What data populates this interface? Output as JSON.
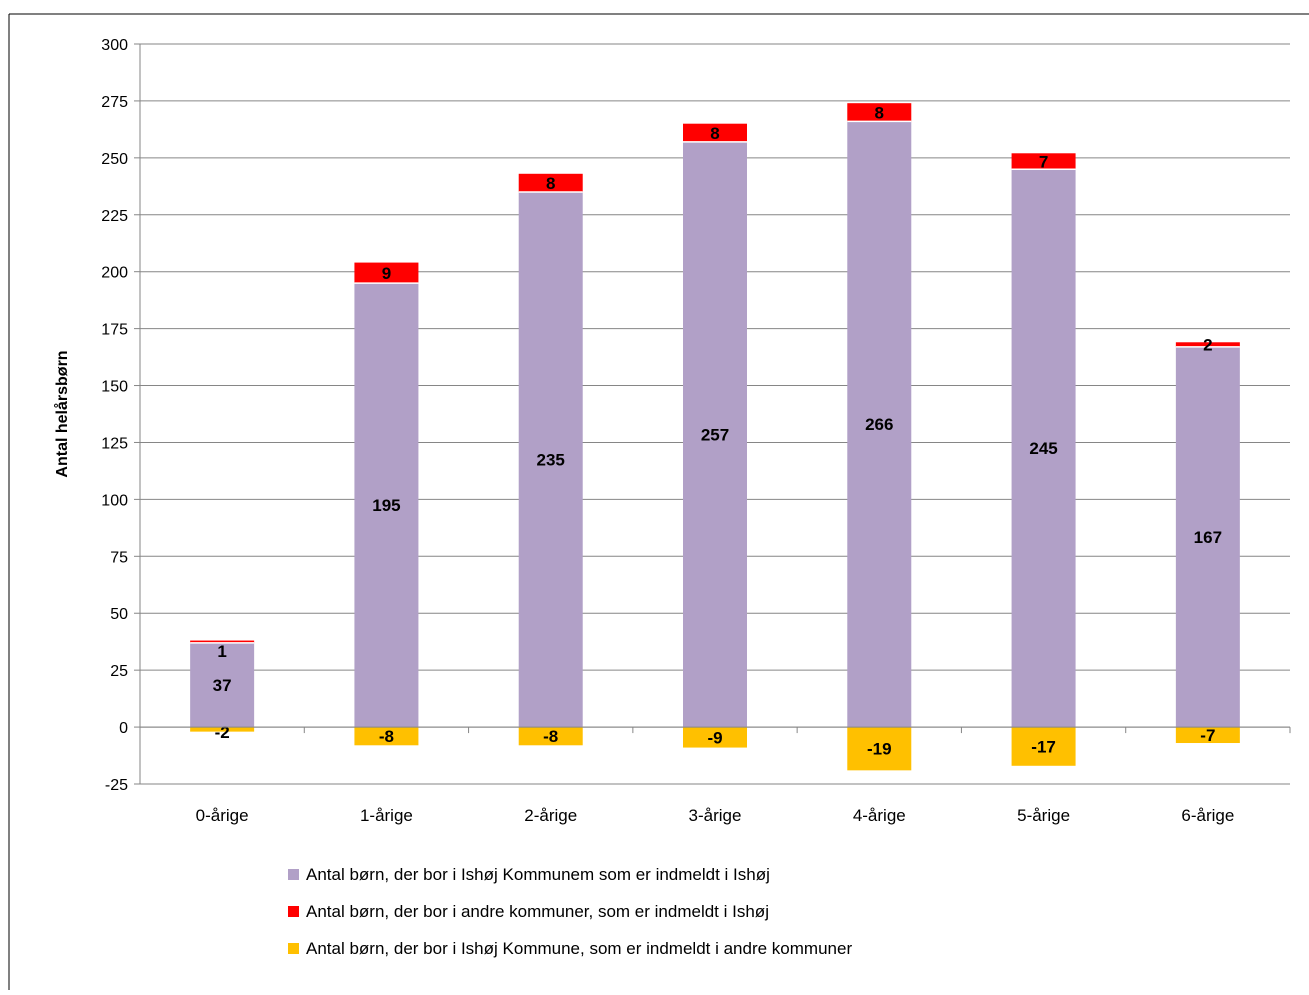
{
  "chart_data": {
    "type": "bar",
    "stacked": true,
    "title": "",
    "ylabel": "Antal helårsbørn",
    "xlabel": "",
    "ylim": [
      -25,
      300
    ],
    "yticks": [
      -25,
      0,
      25,
      50,
      75,
      100,
      125,
      150,
      175,
      200,
      225,
      250,
      275,
      300
    ],
    "grid": true,
    "legend_position": "bottom",
    "categories": [
      "0-årige",
      "1-årige",
      "2-årige",
      "3-årige",
      "4-årige",
      "5-årige",
      "6-årige"
    ],
    "series": [
      {
        "name": "Antal børn, der bor i Ishøj Kommunem som er indmeldt i Ishøj",
        "color": "#b1a0c7",
        "values": [
          37,
          195,
          235,
          257,
          266,
          245,
          167
        ]
      },
      {
        "name": "Antal børn, der bor i andre kommuner, som er indmeldt i Ishøj",
        "color": "#ff0000",
        "values": [
          1,
          9,
          8,
          8,
          8,
          7,
          2
        ]
      },
      {
        "name": "Antal børn, der bor i Ishøj Kommune, som er indmeldt i andre kommuner",
        "color": "#ffc000",
        "values": [
          -2,
          -8,
          -8,
          -9,
          -19,
          -17,
          -7
        ]
      }
    ]
  }
}
